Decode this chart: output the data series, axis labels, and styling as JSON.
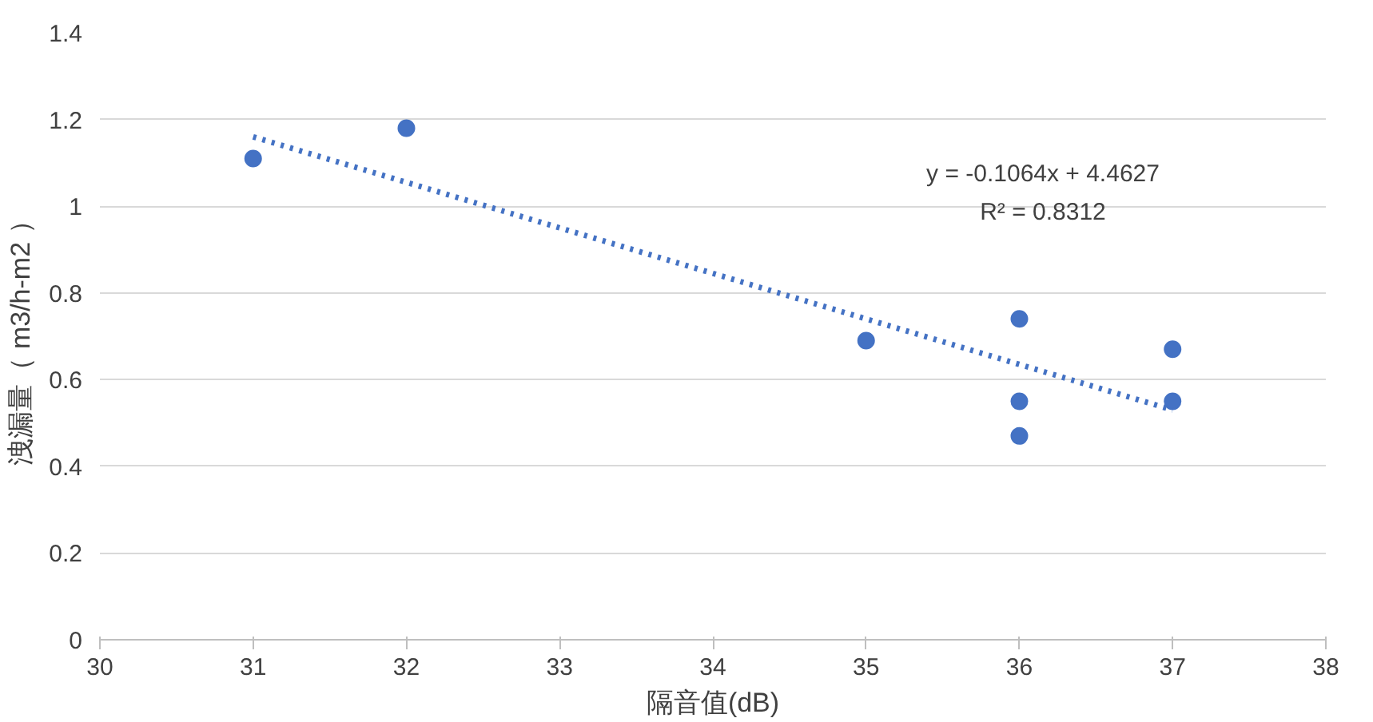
{
  "chart_data": {
    "type": "scatter",
    "xlabel": "隔音值(dB)",
    "ylabel": "洩漏量（ m3/h-m2 ）",
    "xlim": [
      30,
      38
    ],
    "xticks": [
      30,
      31,
      32,
      33,
      34,
      35,
      36,
      37,
      38
    ],
    "ylim": [
      0,
      1.4
    ],
    "yticks": [
      0,
      0.2,
      0.4,
      0.6,
      0.8,
      1,
      1.2,
      1.4
    ],
    "grid": "y",
    "series": [
      {
        "marker": "circle",
        "color": "#4472c4",
        "x": [
          31,
          32,
          35,
          36,
          36,
          36,
          37,
          37
        ],
        "values": [
          1.11,
          1.18,
          0.69,
          0.74,
          0.55,
          0.47,
          0.67,
          0.55
        ]
      },
      {
        "type": "line",
        "marker": "none",
        "line_style": "dotted",
        "color": "#4472c4",
        "x": [
          31,
          37
        ],
        "values": [
          1.16,
          0.53
        ]
      }
    ],
    "annotations": [
      "y = -0.1064x + 4.4627",
      "R² = 0.8312"
    ]
  }
}
